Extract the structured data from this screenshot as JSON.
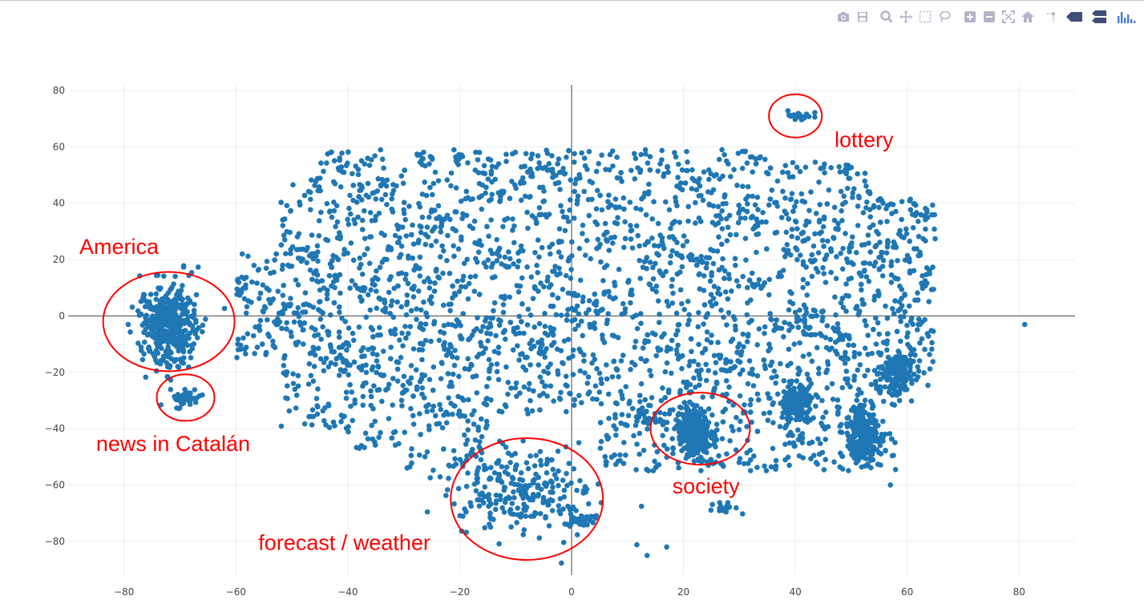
{
  "modebar": {
    "buttons": [
      {
        "name": "camera-icon"
      },
      {
        "name": "save-icon"
      },
      {
        "name": "zoom-icon"
      },
      {
        "name": "pan-icon"
      },
      {
        "name": "box-select-icon"
      },
      {
        "name": "lasso-select-icon"
      },
      {
        "name": "zoom-in-icon"
      },
      {
        "name": "zoom-out-icon"
      },
      {
        "name": "autoscale-icon"
      },
      {
        "name": "reset-axes-icon"
      },
      {
        "name": "spike-lines-icon"
      },
      {
        "name": "hover-closest-icon"
      },
      {
        "name": "hover-compare-icon"
      },
      {
        "name": "plotly-logo-icon"
      }
    ],
    "icon_color": "#b4b4c8",
    "logo_color": "#3f4f75"
  },
  "chart_data": {
    "type": "scatter",
    "title": "",
    "xlabel": "",
    "ylabel": "",
    "xlim": [
      -90,
      90
    ],
    "ylim": [
      -92,
      82
    ],
    "x_ticks": [
      -80,
      -60,
      -40,
      -20,
      0,
      20,
      40,
      60,
      80
    ],
    "y_ticks": [
      -80,
      -60,
      -40,
      -20,
      0,
      20,
      40,
      60,
      80
    ],
    "x_tick_labels": [
      "−80",
      "−60",
      "−40",
      "−20",
      "0",
      "20",
      "40",
      "60",
      "80"
    ],
    "y_tick_labels": [
      "−80",
      "−60",
      "−40",
      "−20",
      "0",
      "20",
      "40",
      "60",
      "80"
    ],
    "grid": true,
    "zero_lines": true,
    "marker_color": "#1f77b4",
    "annotation_color": "#ff0000",
    "clusters": [
      {
        "x": [
          -72,
          2
        ],
        "y": [
          -3,
          7
        ]
      },
      {
        "x": [
          -69,
          1
        ],
        "y": [
          -29,
          1.5
        ]
      },
      {
        "x": [
          -9,
          5
        ],
        "y": [
          -63,
          8
        ]
      },
      {
        "x": 2,
        "y": [
          -72,
          1
        ]
      },
      {
        "x": 22,
        "y": [
          -41,
          4
        ]
      },
      {
        "x": 41,
        "y": [
          71,
          0.8
        ]
      },
      {
        "x": 28,
        "y": [
          -68,
          1
        ]
      },
      {
        "x": 52,
        "y": [
          -42,
          4
        ]
      },
      {
        "x": 58,
        "y": [
          -20,
          4
        ]
      },
      {
        "x": 40,
        "y": [
          -30,
          3
        ]
      }
    ],
    "points": [
      {
        "x": 81,
        "y": -3
      },
      {
        "x": 17,
        "y": -82
      },
      {
        "x": 13.5,
        "y": -85
      },
      {
        "x": 57,
        "y": -60
      },
      {
        "x": 51,
        "y": -49
      },
      {
        "x": 64,
        "y": 15
      }
    ],
    "annotations": [
      {
        "text": "America",
        "x": -88,
        "y": 22
      },
      {
        "text": "news in Catalán",
        "x": -85,
        "y": -48
      },
      {
        "text": "forecast / weather",
        "x": -56,
        "y": -83
      },
      {
        "text": "society",
        "x": 18,
        "y": -63
      },
      {
        "text": "lottery",
        "x": 47,
        "y": 60
      }
    ],
    "ellipses": [
      {
        "label": "America",
        "center": [
          -72,
          -2
        ]
      },
      {
        "label": "news in Catalán",
        "center": [
          -69,
          -29
        ]
      },
      {
        "label": "forecast / weather",
        "center": [
          -8,
          -65
        ]
      },
      {
        "label": "society",
        "center": [
          23,
          -40
        ]
      },
      {
        "label": "lottery",
        "center": [
          40,
          71
        ]
      }
    ]
  }
}
